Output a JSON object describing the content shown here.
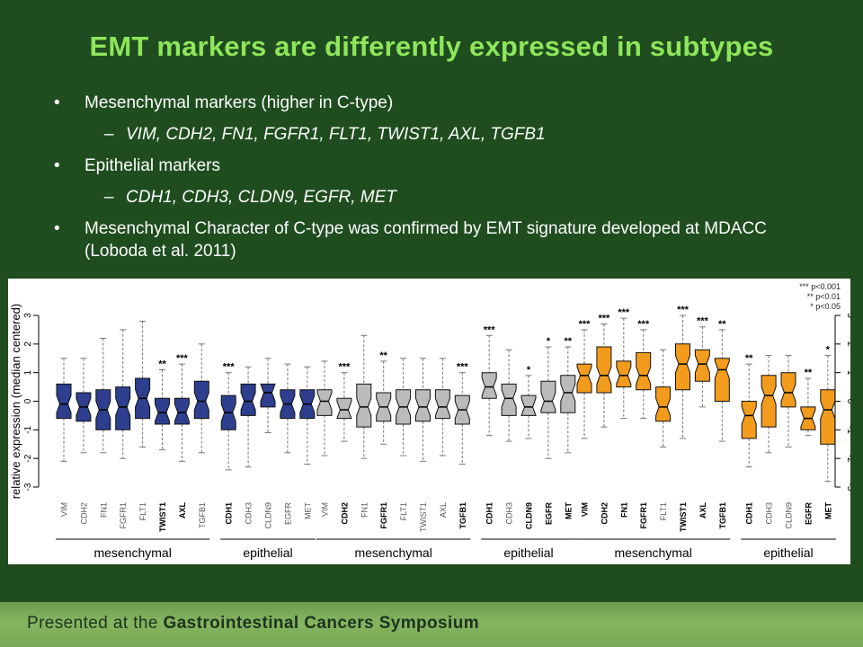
{
  "slide": {
    "title": "EMT markers are differently expressed in subtypes",
    "bullets": [
      {
        "text": "Mesenchymal markers (higher in C-type)",
        "sub": "VIM, CDH2, FN1, FGFR1, FLT1, TWIST1, AXL, TGFB1"
      },
      {
        "text": "Epithelial markers",
        "sub": "CDH1, CDH3, CLDN9, EGFR, MET"
      },
      {
        "text": "Mesenchymal Character of C-type was confirmed by EMT signature developed at MDACC (Loboda et al. 2011)",
        "sub": ""
      }
    ],
    "footer_prefix": "Presented at the ",
    "footer_emphasis": "Gastrointestinal Cancers Symposium"
  },
  "chart_data": {
    "type": "boxplot",
    "ylabel": "relative expression (median centered)",
    "ylim": [
      -3,
      3
    ],
    "yticks": [
      -3,
      -2,
      -1,
      0,
      1,
      2,
      3
    ],
    "legend": {
      "position": "top-right",
      "entries": [
        "*** p<0.001",
        "** p<0.01",
        "* p<0.05"
      ]
    },
    "group_labels": [
      "mesenchymal",
      "epithelial"
    ],
    "panels": [
      {
        "color": "#2e3f8f",
        "genes": [
          {
            "name": "VIM",
            "bold": false,
            "sig": "",
            "stats": [
              -2.1,
              -0.6,
              -0.1,
              0.6,
              1.5
            ]
          },
          {
            "name": "CDH2",
            "bold": false,
            "sig": "",
            "stats": [
              -1.8,
              -0.7,
              -0.2,
              0.3,
              1.5
            ]
          },
          {
            "name": "FN1",
            "bold": false,
            "sig": "",
            "stats": [
              -1.8,
              -1.0,
              -0.3,
              0.4,
              2.2
            ]
          },
          {
            "name": "FGFR1",
            "bold": false,
            "sig": "",
            "stats": [
              -2.0,
              -1.0,
              -0.2,
              0.5,
              2.5
            ]
          },
          {
            "name": "FLT1",
            "bold": false,
            "sig": "",
            "stats": [
              -1.6,
              -0.6,
              0.1,
              0.8,
              2.8
            ]
          },
          {
            "name": "TWIST1",
            "bold": true,
            "sig": "**",
            "stats": [
              -1.7,
              -0.8,
              -0.4,
              0.1,
              1.1
            ]
          },
          {
            "name": "AXL",
            "bold": true,
            "sig": "***",
            "stats": [
              -2.1,
              -0.8,
              -0.4,
              0.1,
              1.3
            ]
          },
          {
            "name": "TGFB1",
            "bold": false,
            "sig": "",
            "stats": [
              -1.8,
              -0.6,
              0.0,
              0.7,
              2.0
            ]
          },
          {
            "name": "CDH1",
            "bold": true,
            "sig": "***",
            "stats": [
              -2.4,
              -1.0,
              -0.4,
              0.2,
              1.0
            ]
          },
          {
            "name": "CDH3",
            "bold": false,
            "sig": "",
            "stats": [
              -2.3,
              -0.5,
              0.0,
              0.6,
              1.2
            ]
          },
          {
            "name": "CLDN9",
            "bold": false,
            "sig": "",
            "stats": [
              -1.1,
              -0.2,
              0.3,
              0.6,
              1.5
            ]
          },
          {
            "name": "EGFR",
            "bold": false,
            "sig": "",
            "stats": [
              -1.8,
              -0.6,
              -0.1,
              0.4,
              1.3
            ]
          },
          {
            "name": "MET",
            "bold": false,
            "sig": "",
            "stats": [
              -2.2,
              -0.6,
              -0.1,
              0.4,
              1.2
            ]
          }
        ]
      },
      {
        "color": "#bbbbbb",
        "genes": [
          {
            "name": "VIM",
            "bold": false,
            "sig": "",
            "stats": [
              -1.9,
              -0.5,
              0.0,
              0.4,
              1.4
            ]
          },
          {
            "name": "CDH2",
            "bold": true,
            "sig": "***",
            "stats": [
              -1.4,
              -0.6,
              -0.3,
              0.1,
              1.0
            ]
          },
          {
            "name": "FN1",
            "bold": false,
            "sig": "",
            "stats": [
              -2.0,
              -0.9,
              -0.2,
              0.6,
              2.3
            ]
          },
          {
            "name": "FGFR1",
            "bold": true,
            "sig": "**",
            "stats": [
              -1.5,
              -0.7,
              -0.2,
              0.3,
              1.4
            ]
          },
          {
            "name": "FLT1",
            "bold": false,
            "sig": "",
            "stats": [
              -1.9,
              -0.8,
              -0.2,
              0.4,
              1.5
            ]
          },
          {
            "name": "TWIST1",
            "bold": false,
            "sig": "",
            "stats": [
              -2.1,
              -0.7,
              -0.2,
              0.4,
              1.5
            ]
          },
          {
            "name": "AXL",
            "bold": false,
            "sig": "",
            "stats": [
              -1.9,
              -0.6,
              -0.2,
              0.4,
              1.5
            ]
          },
          {
            "name": "TGFB1",
            "bold": true,
            "sig": "***",
            "stats": [
              -2.2,
              -0.8,
              -0.3,
              0.2,
              1.0
            ]
          },
          {
            "name": "CDH1",
            "bold": true,
            "sig": "***",
            "stats": [
              -1.2,
              0.1,
              0.5,
              1.0,
              2.3
            ]
          },
          {
            "name": "CDH3",
            "bold": false,
            "sig": "",
            "stats": [
              -1.4,
              -0.5,
              0.1,
              0.6,
              1.8
            ]
          },
          {
            "name": "CLDN9",
            "bold": true,
            "sig": "*",
            "stats": [
              -1.3,
              -0.5,
              -0.2,
              0.2,
              0.9
            ]
          },
          {
            "name": "EGFR",
            "bold": true,
            "sig": "*",
            "stats": [
              -2.0,
              -0.4,
              0.0,
              0.7,
              1.9
            ]
          },
          {
            "name": "MET",
            "bold": true,
            "sig": "**",
            "stats": [
              -1.8,
              -0.4,
              0.3,
              0.9,
              1.9
            ]
          }
        ]
      },
      {
        "color": "#f29b1d",
        "genes": [
          {
            "name": "VIM",
            "bold": true,
            "sig": "***",
            "stats": [
              -1.3,
              0.3,
              0.9,
              1.3,
              2.5
            ]
          },
          {
            "name": "CDH2",
            "bold": true,
            "sig": "***",
            "stats": [
              -0.9,
              0.3,
              0.9,
              1.9,
              2.7
            ]
          },
          {
            "name": "FN1",
            "bold": true,
            "sig": "***",
            "stats": [
              -0.6,
              0.5,
              0.9,
              1.4,
              2.9
            ]
          },
          {
            "name": "FGFR1",
            "bold": true,
            "sig": "***",
            "stats": [
              -0.6,
              0.4,
              0.9,
              1.7,
              2.5
            ]
          },
          {
            "name": "FLT1",
            "bold": false,
            "sig": "",
            "stats": [
              -1.6,
              -0.7,
              -0.2,
              0.5,
              1.8
            ]
          },
          {
            "name": "TWIST1",
            "bold": true,
            "sig": "***",
            "stats": [
              -1.3,
              0.4,
              1.3,
              2.0,
              3.0
            ]
          },
          {
            "name": "AXL",
            "bold": true,
            "sig": "***",
            "stats": [
              -0.2,
              0.7,
              1.3,
              1.8,
              2.6
            ]
          },
          {
            "name": "TGFB1",
            "bold": true,
            "sig": "**",
            "stats": [
              -1.4,
              0.0,
              1.1,
              1.5,
              2.5
            ]
          },
          {
            "name": "CDH1",
            "bold": true,
            "sig": "**",
            "stats": [
              -2.3,
              -1.3,
              -0.5,
              0.0,
              1.3
            ]
          },
          {
            "name": "CDH3",
            "bold": false,
            "sig": "",
            "stats": [
              -1.8,
              -0.9,
              0.2,
              0.9,
              1.6
            ]
          },
          {
            "name": "CLDN9",
            "bold": false,
            "sig": "",
            "stats": [
              -1.6,
              -0.2,
              0.3,
              1.0,
              1.6
            ]
          },
          {
            "name": "EGFR",
            "bold": true,
            "sig": "**",
            "stats": [
              -1.2,
              -1.0,
              -0.6,
              -0.2,
              0.8
            ]
          },
          {
            "name": "MET",
            "bold": true,
            "sig": "*",
            "stats": [
              -2.8,
              -1.5,
              -0.3,
              0.4,
              1.6
            ]
          }
        ]
      }
    ]
  }
}
